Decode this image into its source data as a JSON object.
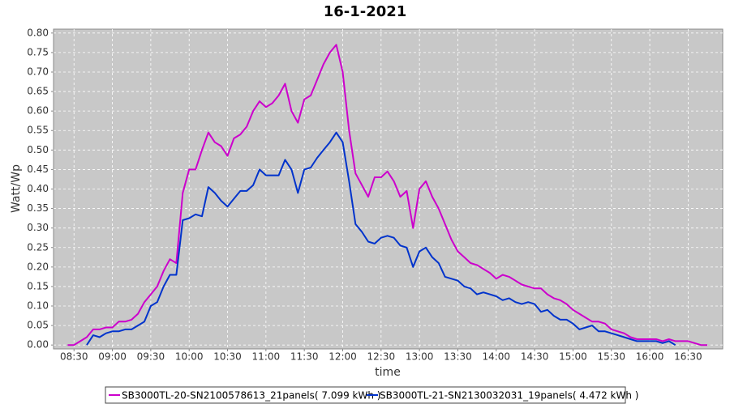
{
  "chart_data": {
    "type": "line",
    "title": "16-1-2021",
    "x_label": "time",
    "y_label": "Watt/Wp",
    "x": [
      "08:25",
      "08:30",
      "08:35",
      "08:40",
      "08:45",
      "08:50",
      "08:55",
      "09:00",
      "09:05",
      "09:10",
      "09:15",
      "09:20",
      "09:25",
      "09:30",
      "09:35",
      "09:40",
      "09:45",
      "09:50",
      "09:55",
      "10:00",
      "10:05",
      "10:10",
      "10:15",
      "10:20",
      "10:25",
      "10:30",
      "10:35",
      "10:40",
      "10:45",
      "10:50",
      "10:55",
      "11:00",
      "11:05",
      "11:10",
      "11:15",
      "11:20",
      "11:25",
      "11:30",
      "11:35",
      "11:40",
      "11:45",
      "11:50",
      "11:55",
      "12:00",
      "12:05",
      "12:10",
      "12:15",
      "12:20",
      "12:25",
      "12:30",
      "12:35",
      "12:40",
      "12:45",
      "12:50",
      "12:55",
      "13:00",
      "13:05",
      "13:10",
      "13:15",
      "13:20",
      "13:25",
      "13:30",
      "13:35",
      "13:40",
      "13:45",
      "13:50",
      "13:55",
      "14:00",
      "14:05",
      "14:10",
      "14:15",
      "14:20",
      "14:25",
      "14:30",
      "14:35",
      "14:40",
      "14:45",
      "14:50",
      "14:55",
      "15:00",
      "15:05",
      "15:10",
      "15:15",
      "15:20",
      "15:25",
      "15:30",
      "15:35",
      "15:40",
      "15:45",
      "15:50",
      "15:55",
      "16:00",
      "16:05",
      "16:10",
      "16:15",
      "16:20",
      "16:25",
      "16:30",
      "16:35",
      "16:40",
      "16:45"
    ],
    "series": [
      {
        "name": "SB3000TL-20-SN2100578613_21panels( 7.099 kWh )",
        "color": "#cc00cc",
        "values": [
          0.0,
          0.0,
          0.01,
          0.02,
          0.04,
          0.04,
          0.045,
          0.045,
          0.06,
          0.06,
          0.065,
          0.08,
          0.11,
          0.13,
          0.15,
          0.19,
          0.22,
          0.21,
          0.39,
          0.45,
          0.45,
          0.5,
          0.545,
          0.52,
          0.51,
          0.485,
          0.53,
          0.54,
          0.56,
          0.6,
          0.625,
          0.61,
          0.62,
          0.64,
          0.67,
          0.6,
          0.57,
          0.63,
          0.64,
          0.68,
          0.72,
          0.75,
          0.77,
          0.7,
          0.55,
          0.44,
          0.41,
          0.38,
          0.43,
          0.43,
          0.445,
          0.42,
          0.38,
          0.395,
          0.3,
          0.4,
          0.42,
          0.38,
          0.35,
          0.31,
          0.27,
          0.24,
          0.225,
          0.21,
          0.205,
          0.195,
          0.185,
          0.17,
          0.18,
          0.175,
          0.165,
          0.155,
          0.15,
          0.145,
          0.145,
          0.13,
          0.12,
          0.115,
          0.105,
          0.09,
          0.08,
          0.07,
          0.06,
          0.06,
          0.055,
          0.04,
          0.035,
          0.03,
          0.02,
          0.015,
          0.015,
          0.015,
          0.015,
          0.01,
          0.015,
          0.01,
          0.01,
          0.01,
          0.005,
          0.0,
          0.0
        ]
      },
      {
        "name": "SB3000TL-21-SN2130032031_19panels( 4.472 kWh )",
        "color": "#0033cc",
        "values": [
          null,
          null,
          null,
          0.0,
          0.025,
          0.02,
          0.03,
          0.035,
          0.035,
          0.04,
          0.04,
          0.05,
          0.06,
          0.1,
          0.11,
          0.15,
          0.18,
          0.18,
          0.32,
          0.325,
          0.335,
          0.33,
          0.405,
          0.39,
          0.37,
          0.355,
          0.375,
          0.395,
          0.395,
          0.41,
          0.45,
          0.435,
          0.435,
          0.435,
          0.475,
          0.45,
          0.39,
          0.45,
          0.455,
          0.48,
          0.5,
          0.52,
          0.545,
          0.52,
          0.42,
          0.31,
          0.29,
          0.265,
          0.26,
          0.275,
          0.28,
          0.275,
          0.255,
          0.25,
          0.2,
          0.24,
          0.25,
          0.225,
          0.21,
          0.175,
          0.17,
          0.165,
          0.15,
          0.145,
          0.13,
          0.135,
          0.13,
          0.125,
          0.115,
          0.12,
          0.11,
          0.105,
          0.11,
          0.105,
          0.085,
          0.09,
          0.075,
          0.065,
          0.065,
          0.055,
          0.04,
          0.045,
          0.05,
          0.035,
          0.035,
          0.03,
          0.025,
          0.02,
          0.015,
          0.01,
          0.01,
          0.01,
          0.01,
          0.005,
          0.01,
          0.0,
          null,
          null,
          null,
          null,
          null
        ]
      }
    ],
    "xlim": [
      "08:14",
      "16:57"
    ],
    "xticks": [
      "08:30",
      "09:00",
      "09:30",
      "10:00",
      "10:30",
      "11:00",
      "11:30",
      "12:00",
      "12:30",
      "13:00",
      "13:30",
      "14:00",
      "14:30",
      "15:00",
      "15:30",
      "16:00",
      "16:30"
    ],
    "ylim": [
      -0.01,
      0.81
    ],
    "yticks": [
      {
        "value": 0,
        "label": "0.00"
      },
      {
        "value": 0.05,
        "label": "0.05"
      },
      {
        "value": 0.1,
        "label": "0.10"
      },
      {
        "value": 0.15,
        "label": "0.15"
      },
      {
        "value": 0.2,
        "label": "0.20"
      },
      {
        "value": 0.25,
        "label": "0.25"
      },
      {
        "value": 0.3,
        "label": "0.30"
      },
      {
        "value": 0.35,
        "label": "0.35"
      },
      {
        "value": 0.4,
        "label": "0.40"
      },
      {
        "value": 0.45,
        "label": "0.45"
      },
      {
        "value": 0.5,
        "label": "0.50"
      },
      {
        "value": 0.55,
        "label": "0.55"
      },
      {
        "value": 0.6,
        "label": "0.60"
      },
      {
        "value": 0.65,
        "label": "0.65"
      },
      {
        "value": 0.7,
        "label": "0.70"
      },
      {
        "value": 0.75,
        "label": "0.75"
      },
      {
        "value": 0.8,
        "label": "0.80"
      }
    ],
    "grid": true
  }
}
